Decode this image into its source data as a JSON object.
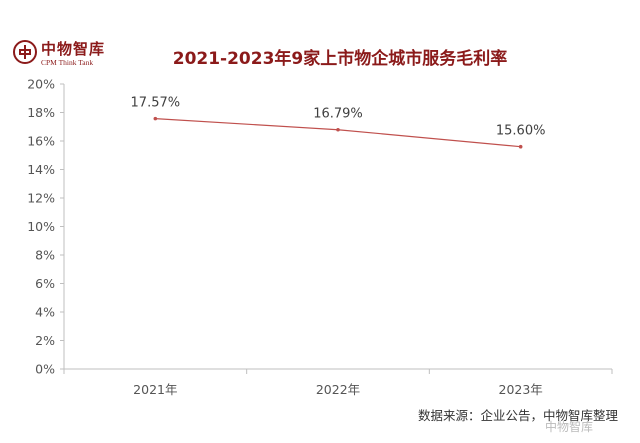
{
  "logo": {
    "name_cn": "中物智库",
    "name_en": "CPM Think Tank"
  },
  "source_note": "数据来源：企业公告，中物智库整理",
  "watermark": "中物智库",
  "chart_data": {
    "type": "line",
    "title": "2021-2023年9家上市物企城市服务毛利率",
    "xlabel": "",
    "ylabel": "",
    "categories": [
      "2021年",
      "2022年",
      "2023年"
    ],
    "series": [
      {
        "values": [
          17.57,
          16.79,
          15.6
        ],
        "data_labels": [
          "17.57%",
          "16.79%",
          "15.60%"
        ]
      }
    ],
    "ylim": [
      0,
      20
    ],
    "yticks": [
      "0%",
      "2%",
      "4%",
      "6%",
      "8%",
      "10%",
      "12%",
      "14%",
      "16%",
      "18%",
      "20%"
    ],
    "grid": false,
    "legend": "none",
    "colors": {
      "line": "#c0504d",
      "title": "#8b1a1a",
      "axis": "#bfbfbf"
    }
  }
}
